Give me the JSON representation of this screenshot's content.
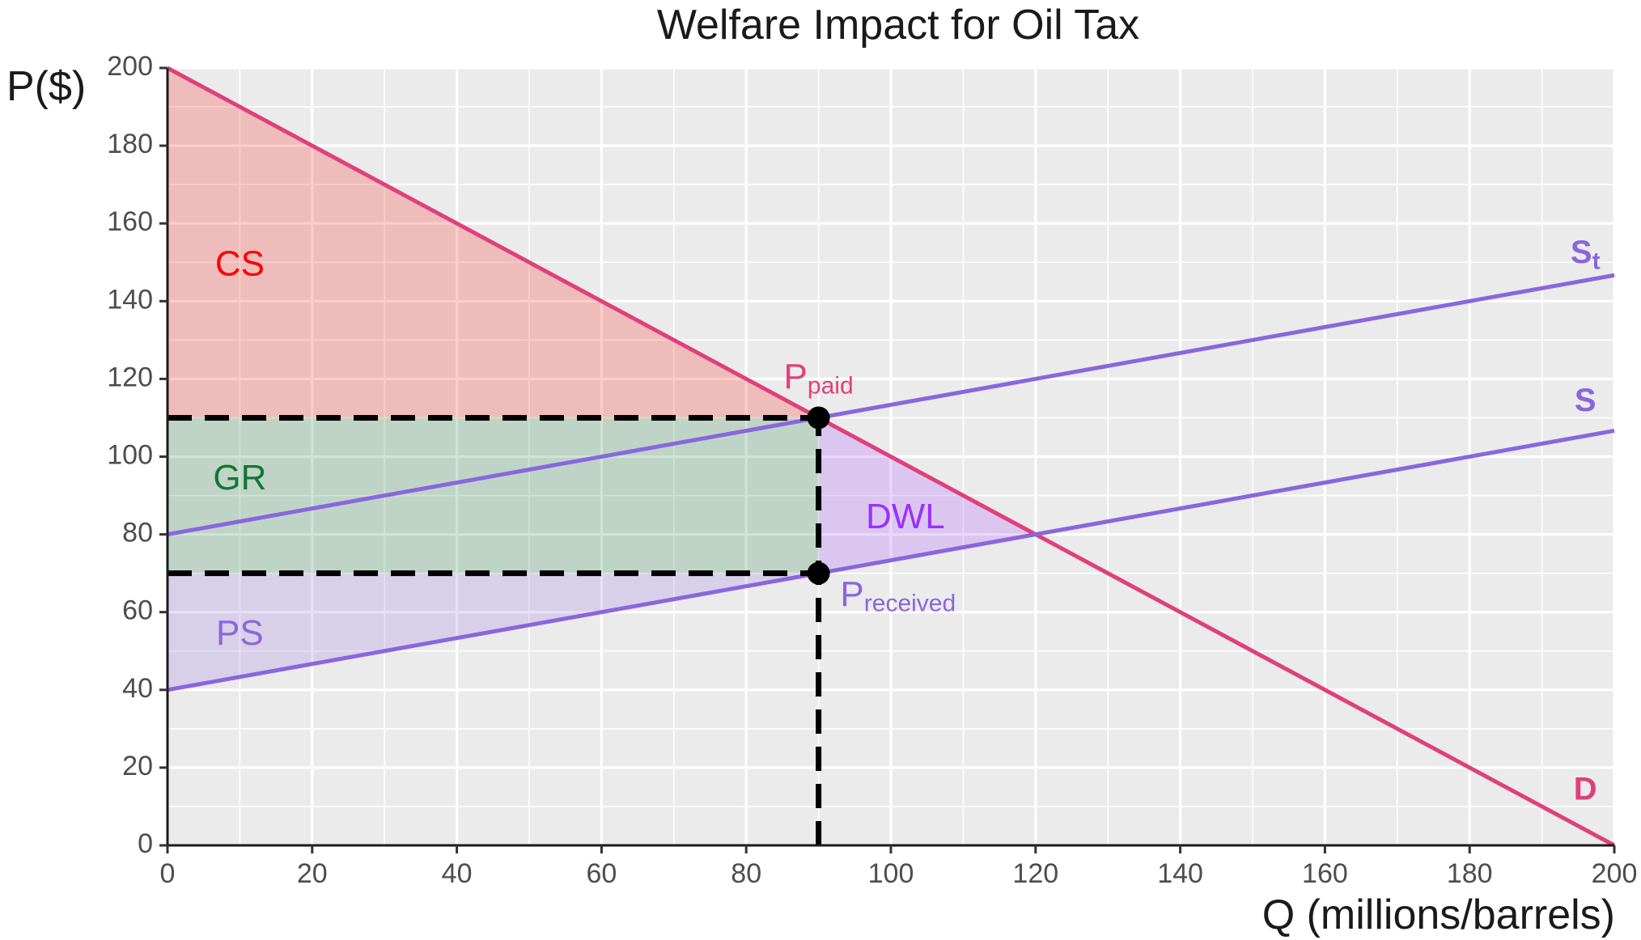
{
  "chart_data": {
    "type": "line",
    "title": "Welfare Impact for Oil Tax",
    "xlabel": "Q (millions/barrels)",
    "ylabel": "P($)",
    "xlim": [
      0,
      200
    ],
    "ylim": [
      0,
      200
    ],
    "xticks": [
      0,
      20,
      40,
      60,
      80,
      100,
      120,
      140,
      160,
      180,
      200
    ],
    "yticks": [
      0,
      20,
      40,
      60,
      80,
      100,
      120,
      140,
      160,
      180,
      200
    ],
    "grid": true,
    "series": [
      {
        "label": "D",
        "x": [
          0,
          200
        ],
        "y": [
          200,
          0
        ],
        "color": "#e0407a"
      },
      {
        "label": "S",
        "x": [
          0,
          200
        ],
        "y": [
          40,
          106.67
        ],
        "color": "#8a66dd"
      },
      {
        "label": "S",
        "label_sub": "t",
        "x": [
          0,
          200
        ],
        "y": [
          80,
          146.67
        ],
        "color": "#8a66dd"
      }
    ],
    "areas": [
      {
        "label": "CS",
        "color": "#ff0000",
        "points": [
          [
            0,
            200
          ],
          [
            0,
            110
          ],
          [
            90,
            110
          ]
        ]
      },
      {
        "label": "GR",
        "color": "#117733",
        "points": [
          [
            0,
            110
          ],
          [
            90,
            110
          ],
          [
            90,
            70
          ],
          [
            0,
            70
          ]
        ]
      },
      {
        "label": "PS",
        "color": "#8a66dd",
        "points": [
          [
            0,
            70
          ],
          [
            90,
            70
          ],
          [
            0,
            40
          ]
        ]
      },
      {
        "label": "DWL",
        "color": "#9b30ff",
        "points": [
          [
            90,
            110
          ],
          [
            120,
            80
          ],
          [
            90,
            70
          ]
        ]
      }
    ],
    "points": [
      {
        "label": "P",
        "label_sub": "paid",
        "x": 90,
        "y": 110,
        "color": "#e0407a"
      },
      {
        "label": "P",
        "label_sub": "received",
        "x": 90,
        "y": 70,
        "color": "#8a66dd"
      }
    ],
    "reference_lines": [
      {
        "style": "dashed",
        "x": [
          0,
          90
        ],
        "y": [
          110,
          110
        ]
      },
      {
        "style": "dashed",
        "x": [
          0,
          90
        ],
        "y": [
          70,
          70
        ]
      },
      {
        "style": "dashed",
        "x": [
          90,
          90
        ],
        "y": [
          0,
          110
        ]
      }
    ]
  }
}
